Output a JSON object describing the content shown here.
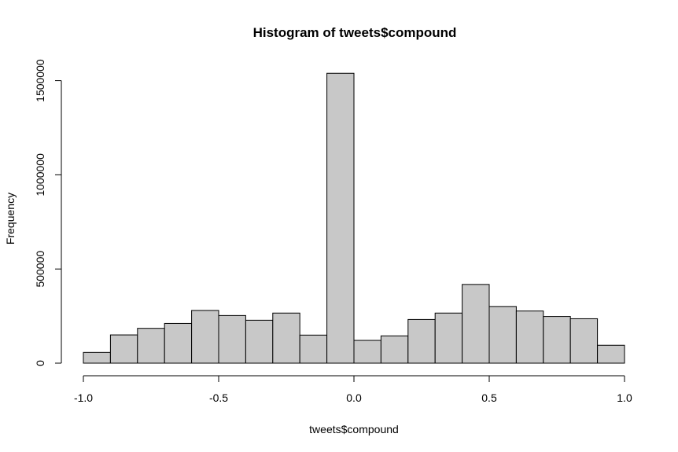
{
  "chart_data": {
    "type": "bar",
    "title": "Histogram of tweets$compound",
    "xlabel": "tweets$compound",
    "ylabel": "Frequency",
    "bin_edges": [
      -1.0,
      -0.9,
      -0.8,
      -0.7,
      -0.6,
      -0.5,
      -0.4,
      -0.3,
      -0.2,
      -0.1,
      0.0,
      0.1,
      0.2,
      0.3,
      0.4,
      0.5,
      0.6,
      0.7,
      0.8,
      0.9,
      1.0
    ],
    "values": [
      57000,
      150000,
      185000,
      211000,
      280000,
      253000,
      228000,
      266000,
      149000,
      1539000,
      121000,
      145000,
      232000,
      266000,
      418000,
      301000,
      277000,
      248000,
      236000,
      95000
    ],
    "xlim": [
      -1.0,
      1.0
    ],
    "ylim": [
      0,
      1540000
    ],
    "xticks": [
      -1.0,
      -0.5,
      0.0,
      0.5,
      1.0
    ],
    "xtick_labels": [
      "-1.0",
      "-0.5",
      "0.0",
      "0.5",
      "1.0"
    ],
    "yticks": [
      0,
      500000,
      1000000,
      1500000
    ],
    "ytick_labels": [
      "0",
      "500000",
      "1000000",
      "1500000"
    ],
    "bar_color": "#c8c8c8",
    "edge_color": "#000000",
    "grid": false
  }
}
